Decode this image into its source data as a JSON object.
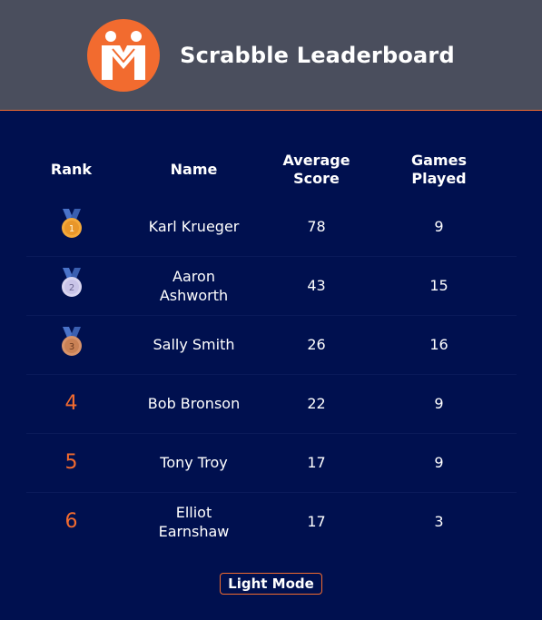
{
  "app": {
    "title": "Scrabble Leaderboard",
    "logo": "two-figures-logo-icon"
  },
  "table": {
    "headers": {
      "rank": "Rank",
      "name": "Name",
      "average_line1": "Average",
      "average_line2": "Score",
      "games_line1": "Games",
      "games_line2": "Played"
    },
    "rows": [
      {
        "rank": "1",
        "medal": "gold-medal-icon",
        "name_line1": "Karl Krueger",
        "name_line2": "",
        "average": "78",
        "games": "9"
      },
      {
        "rank": "2",
        "medal": "silver-medal-icon",
        "name_line1": "Aaron",
        "name_line2": "Ashworth",
        "average": "43",
        "games": "15"
      },
      {
        "rank": "3",
        "medal": "bronze-medal-icon",
        "name_line1": "Sally Smith",
        "name_line2": "",
        "average": "26",
        "games": "16"
      },
      {
        "rank": "4",
        "name_line1": "Bob Bronson",
        "name_line2": "",
        "average": "22",
        "games": "9"
      },
      {
        "rank": "5",
        "name_line1": "Tony Troy",
        "name_line2": "",
        "average": "17",
        "games": "9"
      },
      {
        "rank": "6",
        "name_line1": "Elliot",
        "name_line2": "Earnshaw",
        "average": "17",
        "games": "3"
      }
    ]
  },
  "footer": {
    "mode_button": "Light Mode"
  },
  "colors": {
    "accent": "#f26b2f",
    "header_bg": "#4a4e5d",
    "page_bg": "#00104f",
    "gold": "#f4a93a",
    "silver": "#c9c4e8",
    "bronze": "#c98155",
    "ribbon": "#4a73c9"
  }
}
